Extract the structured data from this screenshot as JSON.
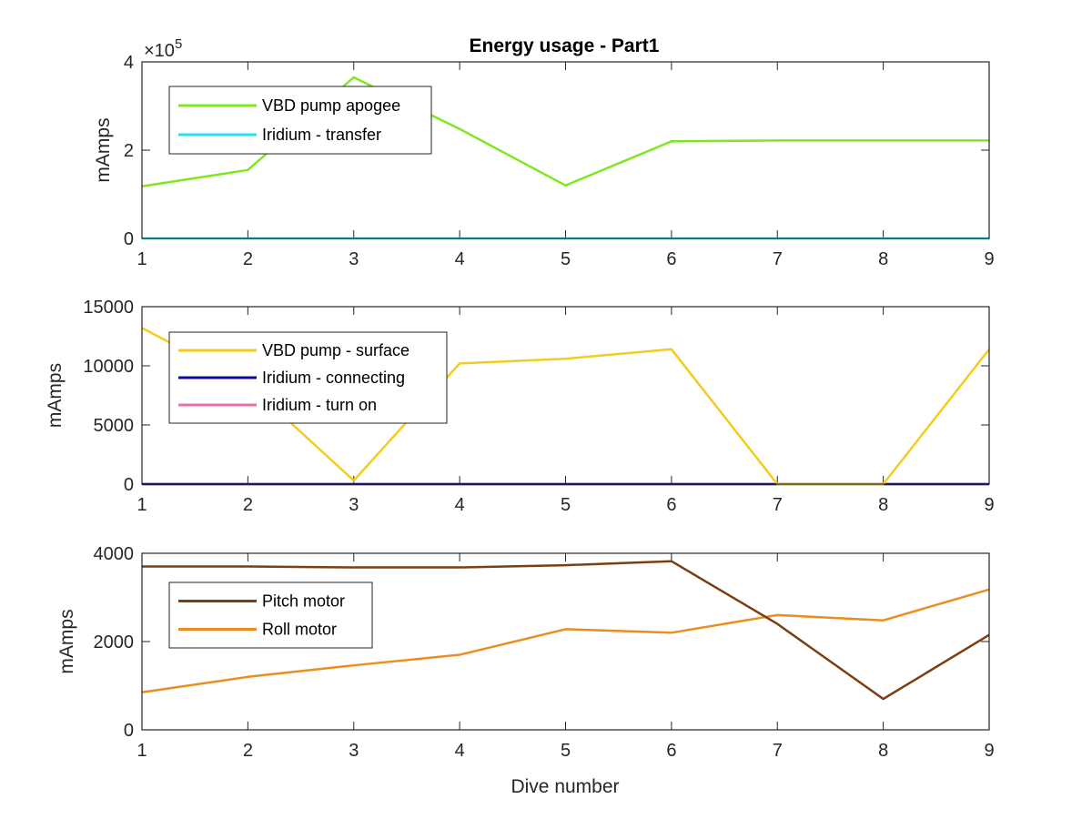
{
  "chart_data": [
    {
      "type": "line",
      "title": "Energy usage - Part1",
      "xlabel": "",
      "ylabel": "mAmps",
      "x": [
        1,
        2,
        3,
        4,
        5,
        6,
        7,
        8,
        9
      ],
      "xlim": [
        1,
        9
      ],
      "ylim": [
        0,
        400000
      ],
      "xticks": [
        "1",
        "2",
        "3",
        "4",
        "5",
        "6",
        "7",
        "8",
        "9"
      ],
      "yticks": [
        0,
        200000,
        400000
      ],
      "ytick_labels": [
        "0",
        "2",
        "4"
      ],
      "y_exponent": "×10",
      "y_exponent_power": "5",
      "legend": "top-left",
      "series": [
        {
          "name": "VBD pump apogee",
          "color": "#80e620",
          "values": [
            118000,
            155000,
            365000,
            248000,
            120000,
            220000,
            222000,
            222000,
            222000
          ]
        },
        {
          "name": "Iridium - transfer",
          "color": "#1ee6f0",
          "values": [
            0,
            0,
            0,
            0,
            0,
            0,
            0,
            0,
            0
          ]
        }
      ]
    },
    {
      "type": "line",
      "title": "",
      "xlabel": "",
      "ylabel": "mAmps",
      "x": [
        1,
        2,
        3,
        4,
        5,
        6,
        7,
        8,
        9
      ],
      "xlim": [
        1,
        9
      ],
      "ylim": [
        0,
        15000
      ],
      "xticks": [
        "1",
        "2",
        "3",
        "4",
        "5",
        "6",
        "7",
        "8",
        "9"
      ],
      "yticks": [
        0,
        5000,
        10000,
        15000
      ],
      "ytick_labels": [
        "0",
        "5000",
        "10000",
        "15000"
      ],
      "legend": "top-left",
      "series": [
        {
          "name": "VBD pump - surface",
          "color": "#f2cd1e",
          "values": [
            13200,
            8500,
            300,
            10200,
            10600,
            11400,
            0,
            0,
            11400
          ]
        },
        {
          "name": "Iridium - connecting",
          "color": "#0a0aa0",
          "values": [
            0,
            0,
            0,
            0,
            0,
            0,
            0,
            0,
            0
          ]
        },
        {
          "name": "Iridium - turn on",
          "color": "#e872a8",
          "values": [
            0,
            0,
            0,
            0,
            0,
            0,
            0,
            0,
            0
          ]
        }
      ]
    },
    {
      "type": "line",
      "title": "",
      "xlabel": "Dive number",
      "ylabel": "mAmps",
      "x": [
        1,
        2,
        3,
        4,
        5,
        6,
        7,
        8,
        9
      ],
      "xlim": [
        1,
        9
      ],
      "ylim": [
        0,
        4000
      ],
      "xticks": [
        "1",
        "2",
        "3",
        "4",
        "5",
        "6",
        "7",
        "8",
        "9"
      ],
      "yticks": [
        0,
        2000,
        4000
      ],
      "ytick_labels": [
        "0",
        "2000",
        "4000"
      ],
      "legend": "top-left",
      "series": [
        {
          "name": "Pitch motor",
          "color": "#7b3f12",
          "values": [
            3700,
            3700,
            3680,
            3680,
            3730,
            3820,
            2400,
            700,
            2150
          ]
        },
        {
          "name": "Roll motor",
          "color": "#ea8e21",
          "values": [
            850,
            1200,
            1460,
            1700,
            2280,
            2200,
            2600,
            2480,
            3180
          ]
        }
      ]
    }
  ]
}
